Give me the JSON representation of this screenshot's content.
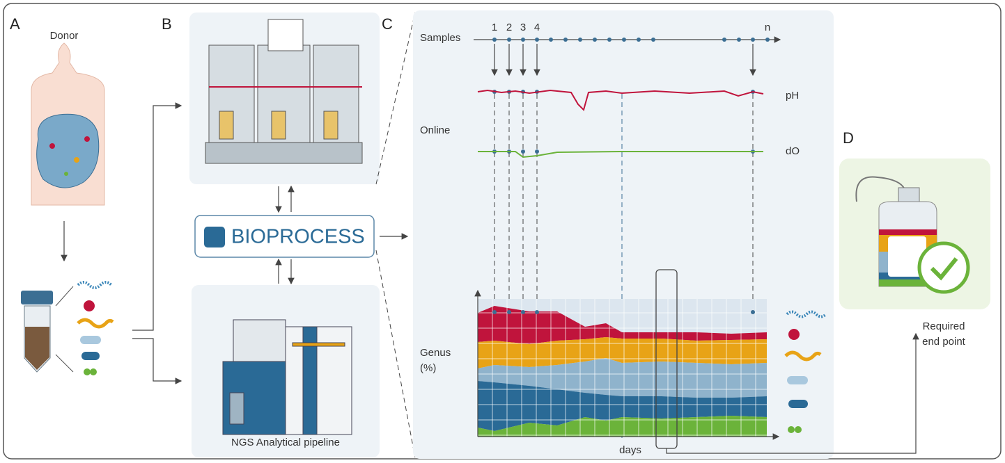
{
  "panels": {
    "a": {
      "letter": "A",
      "label": "Donor"
    },
    "b": {
      "letter": "B",
      "hub": "BIOPROCESS",
      "sequencer": "NGS Analytical pipeline"
    },
    "c": {
      "letter": "C",
      "samples": "Samples",
      "sample_ids": [
        "1",
        "2",
        "3",
        "4",
        "n"
      ],
      "online": "Online",
      "ph": "pH",
      "do": "dO",
      "genus": [
        "Genus",
        "(%)"
      ],
      "days": "days"
    },
    "d": {
      "letter": "D",
      "end_point": [
        "Required",
        "end point"
      ]
    }
  }
}
